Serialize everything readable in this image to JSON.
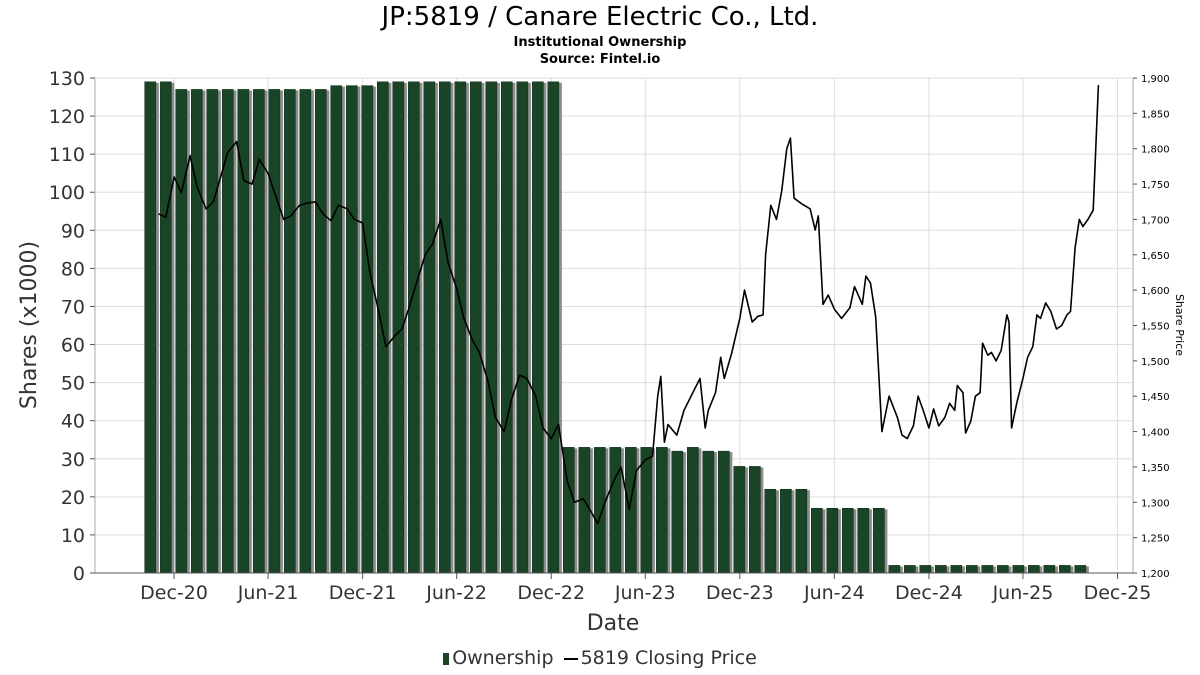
{
  "chart_data": {
    "type": "bar",
    "title": "JP:5819 / Canare Electric Co., Ltd.",
    "subtitle_1": "Institutional Ownership",
    "subtitle_2": "Source: Fintel.io",
    "xlabel": "Date",
    "ylabel": "Shares (x1000)",
    "y2label": "Share Price",
    "ylim": [
      0,
      130
    ],
    "y2lim": [
      1200,
      1900
    ],
    "x_range": [
      "2020-07-01",
      "2025-12-31"
    ],
    "y_ticks": [
      0,
      10,
      20,
      30,
      40,
      50,
      60,
      70,
      80,
      90,
      100,
      110,
      120,
      130
    ],
    "y2_ticks": [
      1200,
      1250,
      1300,
      1350,
      1400,
      1450,
      1500,
      1550,
      1600,
      1650,
      1700,
      1750,
      1800,
      1850,
      1900
    ],
    "y2_tick_labels": [
      "1,200",
      "1,250",
      "1,300",
      "1,350",
      "1,400",
      "1,450",
      "1,500",
      "1,550",
      "1,600",
      "1,650",
      "1,700",
      "1,750",
      "1,800",
      "1,850",
      "1,900"
    ],
    "x_ticks": [
      {
        "label": "Dec-20",
        "date": "2020-12-01"
      },
      {
        "label": "Jun-21",
        "date": "2021-06-01"
      },
      {
        "label": "Dec-21",
        "date": "2021-12-01"
      },
      {
        "label": "Jun-22",
        "date": "2022-06-01"
      },
      {
        "label": "Dec-22",
        "date": "2022-12-01"
      },
      {
        "label": "Jun-23",
        "date": "2023-06-01"
      },
      {
        "label": "Dec-23",
        "date": "2023-12-01"
      },
      {
        "label": "Jun-24",
        "date": "2024-06-01"
      },
      {
        "label": "Dec-24",
        "date": "2024-12-01"
      },
      {
        "label": "Jun-25",
        "date": "2025-06-01"
      },
      {
        "label": "Dec-25",
        "date": "2025-12-01"
      }
    ],
    "grid": true,
    "legend_position": "bottom",
    "bar_color": "#1a4426",
    "bar_shadow_color": "#8c8c8c",
    "line_color": "#000000",
    "series": [
      {
        "name": "Ownership",
        "type": "bar",
        "axis": "left",
        "dates": [
          "2020-10-16",
          "2020-11-15",
          "2020-12-15",
          "2021-01-14",
          "2021-02-13",
          "2021-03-15",
          "2021-04-14",
          "2021-05-14",
          "2021-06-13",
          "2021-07-13",
          "2021-08-12",
          "2021-09-11",
          "2021-10-11",
          "2021-11-10",
          "2021-12-10",
          "2022-01-09",
          "2022-02-08",
          "2022-03-10",
          "2022-04-09",
          "2022-05-09",
          "2022-06-08",
          "2022-07-08",
          "2022-08-07",
          "2022-09-06",
          "2022-10-06",
          "2022-11-05",
          "2022-12-05",
          "2023-01-04",
          "2023-02-03",
          "2023-03-05",
          "2023-04-04",
          "2023-05-04",
          "2023-06-03",
          "2023-07-03",
          "2023-08-02",
          "2023-09-01",
          "2023-10-01",
          "2023-10-31",
          "2023-11-30",
          "2023-12-30",
          "2024-01-29",
          "2024-02-28",
          "2024-03-29",
          "2024-04-28",
          "2024-05-28",
          "2024-06-27",
          "2024-07-27",
          "2024-08-26",
          "2024-09-25",
          "2024-10-25",
          "2024-11-24",
          "2024-12-24",
          "2025-01-23",
          "2025-02-22",
          "2025-03-24",
          "2025-04-23",
          "2025-05-23",
          "2025-06-22",
          "2025-07-22",
          "2025-08-21",
          "2025-09-20"
        ],
        "values": [
          129,
          129,
          127,
          127,
          127,
          127,
          127,
          127,
          127,
          127,
          127,
          127,
          128,
          128,
          128,
          129,
          129,
          129,
          129,
          129,
          129,
          129,
          129,
          129,
          129,
          129,
          129,
          33,
          33,
          33,
          33,
          33,
          33,
          33,
          32,
          33,
          32,
          32,
          28,
          28,
          22,
          22,
          22,
          17,
          17,
          17,
          17,
          17,
          2,
          2,
          2,
          2,
          2,
          2,
          2,
          2,
          2,
          2,
          2,
          2,
          2
        ]
      },
      {
        "name": "5819 Closing Price",
        "type": "line",
        "axis": "right",
        "points": [
          [
            "2020-11-01",
            1708
          ],
          [
            "2020-11-15",
            1703
          ],
          [
            "2020-12-01",
            1760
          ],
          [
            "2020-12-15",
            1738
          ],
          [
            "2021-01-01",
            1790
          ],
          [
            "2021-01-15",
            1745
          ],
          [
            "2021-02-01",
            1715
          ],
          [
            "2021-02-15",
            1725
          ],
          [
            "2021-03-01",
            1760
          ],
          [
            "2021-03-15",
            1795
          ],
          [
            "2021-04-01",
            1810
          ],
          [
            "2021-04-15",
            1755
          ],
          [
            "2021-05-01",
            1750
          ],
          [
            "2021-05-15",
            1785
          ],
          [
            "2021-06-01",
            1765
          ],
          [
            "2021-06-15",
            1735
          ],
          [
            "2021-07-01",
            1700
          ],
          [
            "2021-07-15",
            1705
          ],
          [
            "2021-08-01",
            1720
          ],
          [
            "2021-08-15",
            1723
          ],
          [
            "2021-09-01",
            1725
          ],
          [
            "2021-09-15",
            1708
          ],
          [
            "2021-10-01",
            1698
          ],
          [
            "2021-10-15",
            1720
          ],
          [
            "2021-11-01",
            1715
          ],
          [
            "2021-11-15",
            1700
          ],
          [
            "2021-12-01",
            1695
          ],
          [
            "2021-12-15",
            1625
          ],
          [
            "2022-01-01",
            1570
          ],
          [
            "2022-01-15",
            1520
          ],
          [
            "2022-02-01",
            1535
          ],
          [
            "2022-02-15",
            1545
          ],
          [
            "2022-03-01",
            1575
          ],
          [
            "2022-03-15",
            1610
          ],
          [
            "2022-04-01",
            1650
          ],
          [
            "2022-04-15",
            1665
          ],
          [
            "2022-05-01",
            1700
          ],
          [
            "2022-05-15",
            1640
          ],
          [
            "2022-06-01",
            1602
          ],
          [
            "2022-06-15",
            1560
          ],
          [
            "2022-07-01",
            1530
          ],
          [
            "2022-07-15",
            1512
          ],
          [
            "2022-08-01",
            1470
          ],
          [
            "2022-08-15",
            1420
          ],
          [
            "2022-09-01",
            1400
          ],
          [
            "2022-09-15",
            1445
          ],
          [
            "2022-10-01",
            1480
          ],
          [
            "2022-10-15",
            1475
          ],
          [
            "2022-11-01",
            1450
          ],
          [
            "2022-11-15",
            1405
          ],
          [
            "2022-12-01",
            1390
          ],
          [
            "2022-12-15",
            1410
          ],
          [
            "2023-01-01",
            1330
          ],
          [
            "2023-01-15",
            1300
          ],
          [
            "2023-02-01",
            1305
          ],
          [
            "2023-02-15",
            1288
          ],
          [
            "2023-03-01",
            1270
          ],
          [
            "2023-03-15",
            1300
          ],
          [
            "2023-04-01",
            1330
          ],
          [
            "2023-04-15",
            1350
          ],
          [
            "2023-05-01",
            1290
          ],
          [
            "2023-05-15",
            1345
          ],
          [
            "2023-06-01",
            1360
          ],
          [
            "2023-06-15",
            1365
          ],
          [
            "2023-06-25",
            1450
          ],
          [
            "2023-07-01",
            1478
          ],
          [
            "2023-07-08",
            1385
          ],
          [
            "2023-07-15",
            1410
          ],
          [
            "2023-08-01",
            1395
          ],
          [
            "2023-08-15",
            1430
          ],
          [
            "2023-09-01",
            1455
          ],
          [
            "2023-09-15",
            1475
          ],
          [
            "2023-09-25",
            1405
          ],
          [
            "2023-10-01",
            1430
          ],
          [
            "2023-10-15",
            1455
          ],
          [
            "2023-10-25",
            1505
          ],
          [
            "2023-11-01",
            1475
          ],
          [
            "2023-11-15",
            1510
          ],
          [
            "2023-12-01",
            1560
          ],
          [
            "2023-12-10",
            1600
          ],
          [
            "2023-12-25",
            1555
          ],
          [
            "2024-01-05",
            1563
          ],
          [
            "2024-01-15",
            1565
          ],
          [
            "2024-01-20",
            1650
          ],
          [
            "2024-01-30",
            1720
          ],
          [
            "2024-02-10",
            1700
          ],
          [
            "2024-02-20",
            1740
          ],
          [
            "2024-03-01",
            1800
          ],
          [
            "2024-03-08",
            1815
          ],
          [
            "2024-03-15",
            1730
          ],
          [
            "2024-03-30",
            1722
          ],
          [
            "2024-04-15",
            1715
          ],
          [
            "2024-04-25",
            1685
          ],
          [
            "2024-05-01",
            1705
          ],
          [
            "2024-05-10",
            1580
          ],
          [
            "2024-05-20",
            1593
          ],
          [
            "2024-06-01",
            1573
          ],
          [
            "2024-06-15",
            1560
          ],
          [
            "2024-07-01",
            1575
          ],
          [
            "2024-07-10",
            1605
          ],
          [
            "2024-07-25",
            1580
          ],
          [
            "2024-08-01",
            1620
          ],
          [
            "2024-08-10",
            1610
          ],
          [
            "2024-08-20",
            1562
          ],
          [
            "2024-09-01",
            1400
          ],
          [
            "2024-09-15",
            1450
          ],
          [
            "2024-10-01",
            1420
          ],
          [
            "2024-10-10",
            1395
          ],
          [
            "2024-10-20",
            1390
          ],
          [
            "2024-11-01",
            1408
          ],
          [
            "2024-11-10",
            1450
          ],
          [
            "2024-11-20",
            1430
          ],
          [
            "2024-12-01",
            1405
          ],
          [
            "2024-12-10",
            1432
          ],
          [
            "2024-12-20",
            1408
          ],
          [
            "2025-01-01",
            1420
          ],
          [
            "2025-01-10",
            1440
          ],
          [
            "2025-01-20",
            1430
          ],
          [
            "2025-01-25",
            1465
          ],
          [
            "2025-02-05",
            1455
          ],
          [
            "2025-02-10",
            1398
          ],
          [
            "2025-02-20",
            1415
          ],
          [
            "2025-03-01",
            1450
          ],
          [
            "2025-03-10",
            1455
          ],
          [
            "2025-03-15",
            1525
          ],
          [
            "2025-03-25",
            1508
          ],
          [
            "2025-04-01",
            1512
          ],
          [
            "2025-04-10",
            1500
          ],
          [
            "2025-04-20",
            1515
          ],
          [
            "2025-05-01",
            1565
          ],
          [
            "2025-05-05",
            1555
          ],
          [
            "2025-05-10",
            1405
          ],
          [
            "2025-05-20",
            1440
          ],
          [
            "2025-06-01",
            1475
          ],
          [
            "2025-06-10",
            1505
          ],
          [
            "2025-06-20",
            1520
          ],
          [
            "2025-06-28",
            1565
          ],
          [
            "2025-07-05",
            1560
          ],
          [
            "2025-07-15",
            1582
          ],
          [
            "2025-07-25",
            1570
          ],
          [
            "2025-08-05",
            1545
          ],
          [
            "2025-08-15",
            1550
          ],
          [
            "2025-08-25",
            1565
          ],
          [
            "2025-09-01",
            1570
          ],
          [
            "2025-09-10",
            1660
          ],
          [
            "2025-09-18",
            1700
          ],
          [
            "2025-09-25",
            1690
          ],
          [
            "2025-10-05",
            1700
          ],
          [
            "2025-10-15",
            1713
          ],
          [
            "2025-10-25",
            1890
          ]
        ]
      }
    ]
  }
}
